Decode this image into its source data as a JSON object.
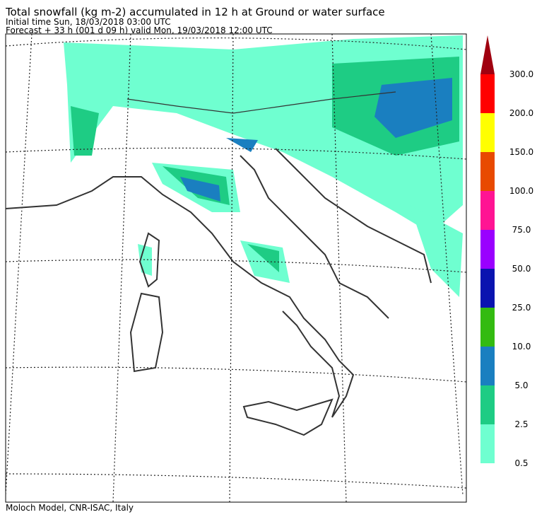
{
  "header": {
    "title": "Total snowfall (kg m-2) accumulated in  12 h at Ground or water surface",
    "line2": "Initial time  Sun, 18/03/2018  03:00 UTC",
    "line3": "Forecast  +  33 h  (001 d 09 h)  valid Mon, 19/03/2018 12:00 UTC"
  },
  "footer": "Moloch Model, CNR-ISAC, Italy",
  "colorbar": {
    "levels": [
      {
        "label": "0.5",
        "color": "#6fffd0"
      },
      {
        "label": "2.5",
        "color": "#1ecc84"
      },
      {
        "label": "5.0",
        "color": "#1a7fc0"
      },
      {
        "label": "10.0",
        "color": "#33bb11"
      },
      {
        "label": "25.0",
        "color": "#0a14b0"
      },
      {
        "label": "50.0",
        "color": "#9a00ff"
      },
      {
        "label": "75.0",
        "color": "#ff1493"
      },
      {
        "label": "100.0",
        "color": "#e84a00"
      },
      {
        "label": "150.0",
        "color": "#ffff00"
      },
      {
        "label": "200.0",
        "color": "#ff0000"
      },
      {
        "label": "300.0",
        "color": "#a00010"
      }
    ]
  }
}
